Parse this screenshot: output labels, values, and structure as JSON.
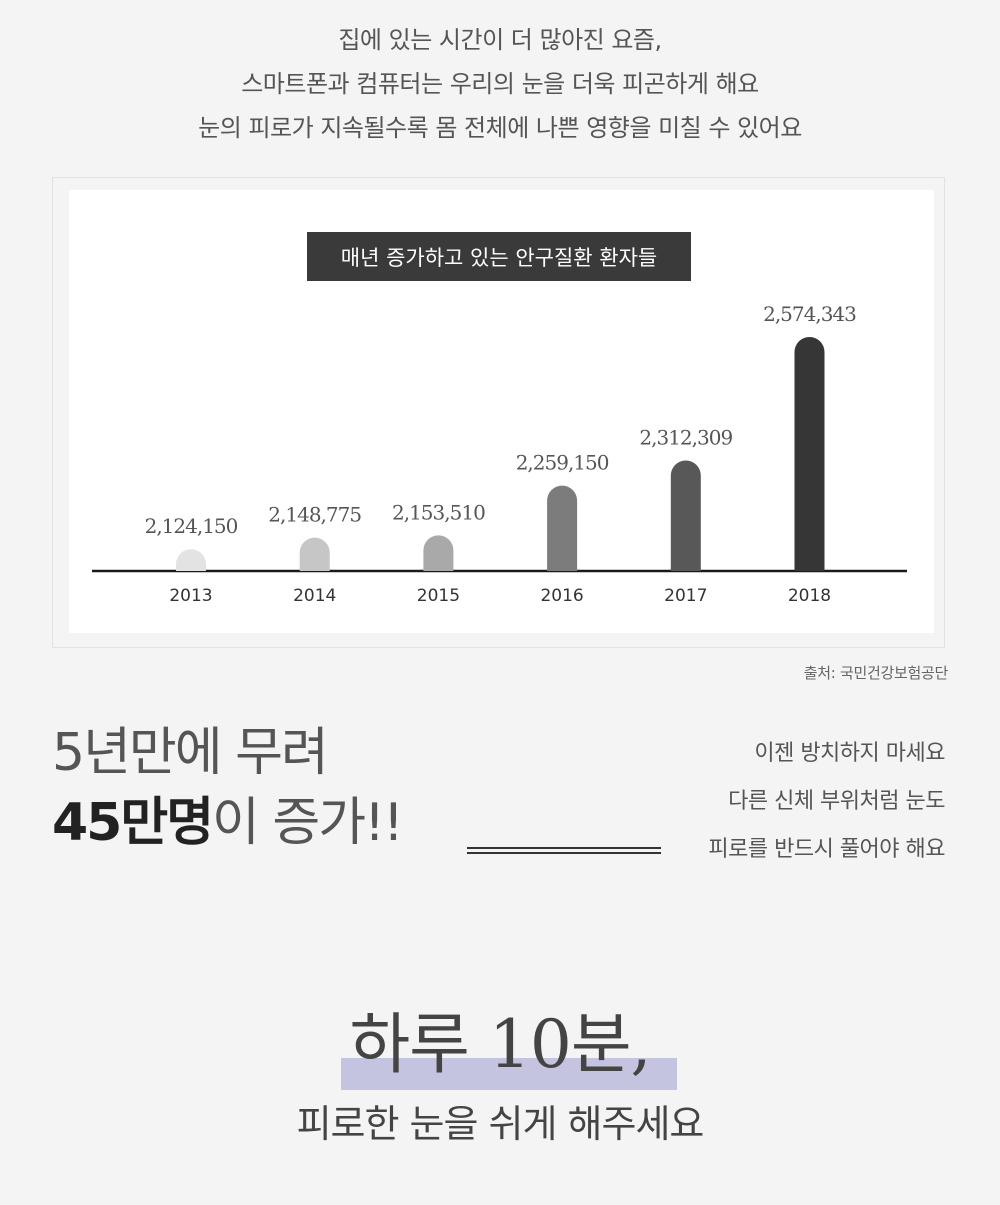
{
  "intro": {
    "lines": [
      "집에 있는 시간이 더 많아진 요즘,",
      "스마트폰과 컴퓨터는 우리의 눈을 더욱 피곤하게 해요",
      "눈의 피로가 지속될수록 몸 전체에 나쁜 영향을 미칠 수 있어요"
    ]
  },
  "chart_data": {
    "type": "bar",
    "title": "매년 증가하고 있는 안구질환 환자들",
    "categories": [
      "2013",
      "2014",
      "2015",
      "2016",
      "2017",
      "2018"
    ],
    "values": [
      2124150,
      2148775,
      2153510,
      2259150,
      2312309,
      2574343
    ],
    "value_labels": [
      "2,124,150",
      "2,148,775",
      "2,153,510",
      "2,259,150",
      "2,312,309",
      "2,574,343"
    ],
    "bar_colors": [
      "#e3e3e3",
      "#c6c6c6",
      "#a9a9a9",
      "#7c7c7c",
      "#585858",
      "#363636"
    ],
    "title_bg": "#3a3a3a",
    "grid": false
  },
  "source": "출처: 국민건강보험공단",
  "headline": {
    "line1": "5년만에 무려",
    "line2_strong": "45만명",
    "line2_rest": "이 증가!!"
  },
  "right_note": {
    "lines": [
      "이젠 방치하지 마세요",
      "다른 신체 부위처럼 눈도",
      "피로를 반드시 풀어야 해요"
    ]
  },
  "closing": {
    "title": "하루 10분,",
    "subtitle": "피로한 눈을 쉬게 해주세요",
    "highlight_color": "#c5c4e0"
  }
}
